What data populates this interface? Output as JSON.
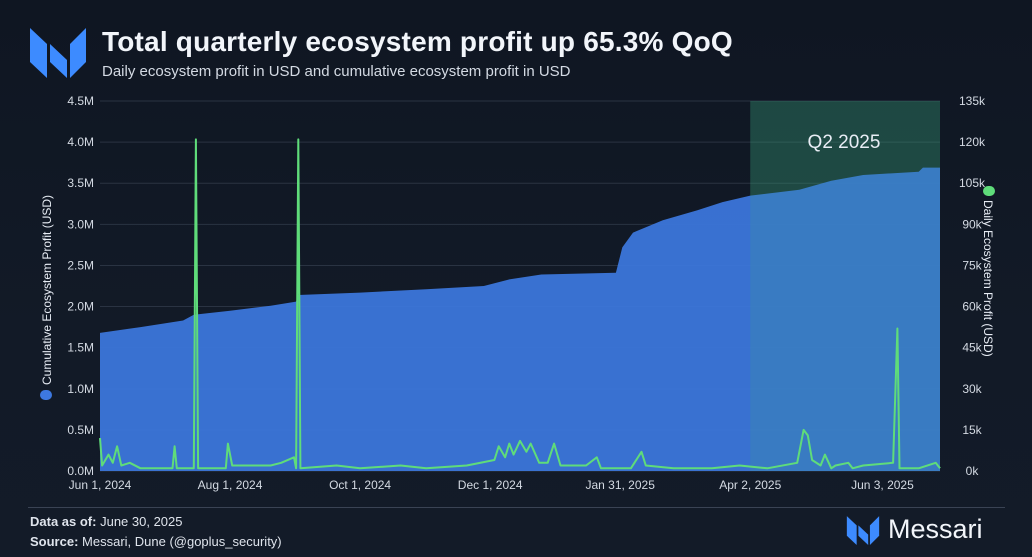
{
  "header": {
    "title": "Total quarterly ecosystem profit up 65.3% QoQ",
    "subtitle": "Daily ecosystem profit in USD and cumulative ecosystem profit in USD"
  },
  "footer": {
    "data_as_of_label": "Data as of:",
    "data_as_of_value": "June 30, 2025",
    "source_label": "Source:",
    "source_value": "Messari, Dune (@goplus_security)",
    "brand": "Messari"
  },
  "colors": {
    "cumulative": "#3d78e0",
    "daily": "#5fdc7a",
    "highlight": "#3aa37a",
    "brand": "#3d8bff"
  },
  "chart_data": {
    "type": "area",
    "annotation": "Q2 2025",
    "highlight_range": [
      "Apr 2, 2025",
      "Jun 30, 2025"
    ],
    "x_tick_labels": [
      "Jun 1, 2024",
      "Aug 1, 2024",
      "Oct 1, 2024",
      "Dec 1, 2024",
      "Jan 31, 2025",
      "Apr 2, 2025",
      "Jun 3, 2025"
    ],
    "x_tick_dates": [
      "2024-06-01",
      "2024-08-01",
      "2024-10-01",
      "2024-12-01",
      "2025-01-31",
      "2025-04-02",
      "2025-06-03"
    ],
    "xlim": [
      "2024-06-01",
      "2025-06-30"
    ],
    "y_left": {
      "label": "Cumulative Ecosystem Profit (USD)",
      "ylim": [
        0,
        4500000
      ],
      "ticks": [
        0,
        500000,
        1000000,
        1500000,
        2000000,
        2500000,
        3000000,
        3500000,
        4000000,
        4500000
      ],
      "tick_labels": [
        "0.0M",
        "0.5M",
        "1.0M",
        "1.5M",
        "2.0M",
        "2.5M",
        "3.0M",
        "3.5M",
        "4.0M",
        "4.5M"
      ]
    },
    "y_right": {
      "label": "Daily Ecosystem Profit (USD)",
      "ylim": [
        0,
        135000
      ],
      "ticks": [
        0,
        15000,
        30000,
        45000,
        60000,
        75000,
        90000,
        105000,
        120000,
        135000
      ],
      "tick_labels": [
        "0k",
        "15k",
        "30k",
        "45k",
        "60k",
        "75k",
        "90k",
        "105k",
        "120k",
        "135k"
      ]
    },
    "grid": true,
    "series": [
      {
        "name": "Cumulative Ecosystem Profit (USD)",
        "axis": "left",
        "type": "area",
        "points": [
          [
            "2024-06-01",
            1680000
          ],
          [
            "2024-06-20",
            1750000
          ],
          [
            "2024-07-10",
            1830000
          ],
          [
            "2024-07-15",
            1900000
          ],
          [
            "2024-08-01",
            1950000
          ],
          [
            "2024-08-20",
            2010000
          ],
          [
            "2024-09-01",
            2060000
          ],
          [
            "2024-09-02",
            2140000
          ],
          [
            "2024-10-01",
            2170000
          ],
          [
            "2024-11-01",
            2210000
          ],
          [
            "2024-11-28",
            2250000
          ],
          [
            "2024-12-10",
            2330000
          ],
          [
            "2024-12-25",
            2390000
          ],
          [
            "2025-01-29",
            2410000
          ],
          [
            "2025-02-01",
            2720000
          ],
          [
            "2025-02-06",
            2900000
          ],
          [
            "2025-02-20",
            3050000
          ],
          [
            "2025-03-08",
            3170000
          ],
          [
            "2025-03-20",
            3270000
          ],
          [
            "2025-04-02",
            3350000
          ],
          [
            "2025-04-25",
            3420000
          ],
          [
            "2025-05-10",
            3530000
          ],
          [
            "2025-05-25",
            3600000
          ],
          [
            "2025-06-20",
            3640000
          ],
          [
            "2025-06-22",
            3690000
          ],
          [
            "2025-06-30",
            3690000
          ]
        ]
      },
      {
        "name": "Daily Ecosystem Profit (USD)",
        "axis": "right",
        "type": "line",
        "points": [
          [
            "2024-06-01",
            12000
          ],
          [
            "2024-06-02",
            2000
          ],
          [
            "2024-06-05",
            6000
          ],
          [
            "2024-06-07",
            3000
          ],
          [
            "2024-06-09",
            9000
          ],
          [
            "2024-06-11",
            2000
          ],
          [
            "2024-06-15",
            3000
          ],
          [
            "2024-06-20",
            1000
          ],
          [
            "2024-07-05",
            1000
          ],
          [
            "2024-07-06",
            9000
          ],
          [
            "2024-07-07",
            1000
          ],
          [
            "2024-07-15",
            1000
          ],
          [
            "2024-07-16",
            121000
          ],
          [
            "2024-07-17",
            1000
          ],
          [
            "2024-07-30",
            1000
          ],
          [
            "2024-07-31",
            10000
          ],
          [
            "2024-08-02",
            2000
          ],
          [
            "2024-08-20",
            2000
          ],
          [
            "2024-08-25",
            3000
          ],
          [
            "2024-08-31",
            5000
          ],
          [
            "2024-09-01",
            1000
          ],
          [
            "2024-09-02",
            121000
          ],
          [
            "2024-09-03",
            1000
          ],
          [
            "2024-09-20",
            2000
          ],
          [
            "2024-10-01",
            1000
          ],
          [
            "2024-10-20",
            2000
          ],
          [
            "2024-11-01",
            1000
          ],
          [
            "2024-11-20",
            2000
          ],
          [
            "2024-12-03",
            4000
          ],
          [
            "2024-12-05",
            9000
          ],
          [
            "2024-12-08",
            5000
          ],
          [
            "2024-12-10",
            10000
          ],
          [
            "2024-12-12",
            6000
          ],
          [
            "2024-12-15",
            11000
          ],
          [
            "2024-12-18",
            7000
          ],
          [
            "2024-12-20",
            10000
          ],
          [
            "2024-12-24",
            3000
          ],
          [
            "2024-12-28",
            3000
          ],
          [
            "2024-12-31",
            10000
          ],
          [
            "2025-01-03",
            2000
          ],
          [
            "2025-01-15",
            2000
          ],
          [
            "2025-01-20",
            5000
          ],
          [
            "2025-01-22",
            1000
          ],
          [
            "2025-02-05",
            1000
          ],
          [
            "2025-02-10",
            7000
          ],
          [
            "2025-02-12",
            2000
          ],
          [
            "2025-02-25",
            1000
          ],
          [
            "2025-03-15",
            1000
          ],
          [
            "2025-03-28",
            2000
          ],
          [
            "2025-04-10",
            1000
          ],
          [
            "2025-04-24",
            3000
          ],
          [
            "2025-04-27",
            15000
          ],
          [
            "2025-04-29",
            13000
          ],
          [
            "2025-05-01",
            4000
          ],
          [
            "2025-05-05",
            2000
          ],
          [
            "2025-05-07",
            6000
          ],
          [
            "2025-05-10",
            1000
          ],
          [
            "2025-05-12",
            2000
          ],
          [
            "2025-05-18",
            3000
          ],
          [
            "2025-05-20",
            1000
          ],
          [
            "2025-05-25",
            2000
          ],
          [
            "2025-06-08",
            3000
          ],
          [
            "2025-06-10",
            52000
          ],
          [
            "2025-06-11",
            1000
          ],
          [
            "2025-06-20",
            1000
          ],
          [
            "2025-06-28",
            3000
          ],
          [
            "2025-06-30",
            1000
          ]
        ]
      }
    ]
  }
}
